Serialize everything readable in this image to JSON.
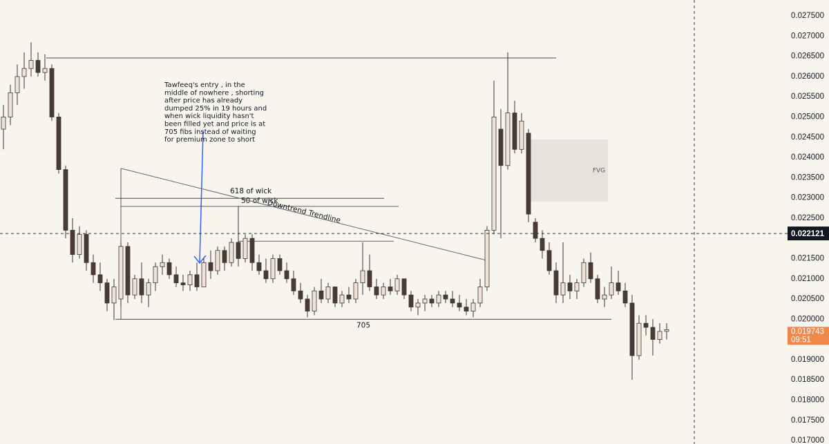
{
  "chart_data": {
    "type": "candlestick",
    "up_color": "#efe3d6",
    "down_color": "#4a3a36",
    "open": [
      0.0247,
      0.025,
      0.0256,
      0.026,
      0.0262,
      0.0264,
      0.0261,
      0.0262,
      0.025,
      0.0237,
      0.0222,
      0.0216,
      0.0221,
      0.0214,
      0.0211,
      0.0209,
      0.0204,
      0.0205,
      0.0218,
      0.0206,
      0.021,
      0.0206,
      0.0209,
      0.0213,
      0.0214,
      0.0211,
      0.0209,
      0.02085,
      0.0211,
      0.0208,
      0.0214,
      0.0212,
      0.0217,
      0.0214,
      0.0219,
      0.0215,
      0.022,
      0.0214,
      0.0212,
      0.021,
      0.0215,
      0.0212,
      0.021,
      0.0207,
      0.0205,
      0.0202,
      0.0207,
      0.0205,
      0.0208,
      0.0204,
      0.0206,
      0.0205,
      0.0209,
      0.0212,
      0.0208,
      0.0206,
      0.0208,
      0.0207,
      0.021,
      0.0206,
      0.0203,
      0.0204,
      0.0205,
      0.0204,
      0.0206,
      0.0205,
      0.0204,
      0.0203,
      0.0202,
      0.0204,
      0.0208,
      0.0222,
      0.0247,
      0.0238,
      0.0251,
      0.0242,
      0.0246,
      0.0224,
      0.022,
      0.0217,
      0.0212,
      0.0206,
      0.0209,
      0.0207,
      0.0209,
      0.0214,
      0.021,
      0.0205,
      0.0206,
      0.0209,
      0.0207,
      0.0204,
      0.0191,
      0.0199,
      0.0198,
      0.0195,
      0.0197
    ],
    "high": [
      0.0253,
      0.0258,
      0.0263,
      0.0266,
      0.02685,
      0.0266,
      0.02655,
      0.0263,
      0.0251,
      0.0238,
      0.0225,
      0.0223,
      0.0222,
      0.0216,
      0.0214,
      0.021,
      0.021,
      0.0219,
      0.0219,
      0.0211,
      0.0214,
      0.021,
      0.0214,
      0.0216,
      0.0215,
      0.0213,
      0.0211,
      0.0212,
      0.0214,
      0.0215,
      0.0217,
      0.0218,
      0.0218,
      0.022,
      0.0228,
      0.0221,
      0.0221,
      0.0216,
      0.0215,
      0.0216,
      0.0216,
      0.0214,
      0.0212,
      0.0209,
      0.0206,
      0.0208,
      0.021,
      0.0209,
      0.0208,
      0.0207,
      0.0208,
      0.021,
      0.0219,
      0.0216,
      0.021,
      0.0209,
      0.021,
      0.0211,
      0.021,
      0.0207,
      0.0205,
      0.0206,
      0.0206,
      0.0207,
      0.0207,
      0.0207,
      0.0206,
      0.0205,
      0.0205,
      0.021,
      0.0223,
      0.0259,
      0.0252,
      0.0266,
      0.0254,
      0.0251,
      0.0247,
      0.0225,
      0.0222,
      0.0219,
      0.0214,
      0.0219,
      0.0211,
      0.021,
      0.0215,
      0.02165,
      0.0211,
      0.0208,
      0.0213,
      0.0212,
      0.0209,
      0.0206,
      0.0201,
      0.0201,
      0.02,
      0.0199,
      0.0199
    ],
    "low": [
      0.0242,
      0.0248,
      0.0253,
      0.0257,
      0.026,
      0.026,
      0.0259,
      0.0249,
      0.0236,
      0.022,
      0.0214,
      0.0215,
      0.0212,
      0.0209,
      0.0207,
      0.0202,
      0.01998,
      0.0203,
      0.0204,
      0.0205,
      0.0204,
      0.0203,
      0.0207,
      0.0211,
      0.021,
      0.0208,
      0.0207,
      0.0207,
      0.0207,
      0.0208,
      0.021,
      0.0211,
      0.0212,
      0.0213,
      0.0213,
      0.0214,
      0.0212,
      0.0211,
      0.0209,
      0.0209,
      0.0211,
      0.0209,
      0.0206,
      0.0204,
      0.02005,
      0.0201,
      0.0204,
      0.0204,
      0.0203,
      0.0203,
      0.0204,
      0.0204,
      0.0206,
      0.0207,
      0.0205,
      0.0205,
      0.0206,
      0.0206,
      0.0205,
      0.0202,
      0.0201,
      0.0202,
      0.0203,
      0.0203,
      0.0204,
      0.0203,
      0.0202,
      0.0201,
      0.02005,
      0.0203,
      0.0207,
      0.0221,
      0.022,
      0.0237,
      0.0241,
      0.0241,
      0.0224,
      0.0219,
      0.0215,
      0.0211,
      0.0204,
      0.0204,
      0.0205,
      0.0205,
      0.0208,
      0.0209,
      0.0204,
      0.0203,
      0.0205,
      0.0206,
      0.0203,
      0.0185,
      0.019,
      0.0196,
      0.0191,
      0.0194,
      0.0195
    ],
    "close": [
      0.025,
      0.0256,
      0.026,
      0.0262,
      0.0264,
      0.0261,
      0.0262,
      0.025,
      0.0237,
      0.0222,
      0.0216,
      0.0221,
      0.0214,
      0.0211,
      0.0209,
      0.0204,
      0.0208,
      0.0218,
      0.0206,
      0.021,
      0.0206,
      0.0209,
      0.0213,
      0.0214,
      0.0211,
      0.0209,
      0.02085,
      0.0211,
      0.0208,
      0.0214,
      0.0212,
      0.0217,
      0.0214,
      0.0219,
      0.0215,
      0.022,
      0.0214,
      0.0212,
      0.021,
      0.0215,
      0.0212,
      0.021,
      0.0207,
      0.0205,
      0.0202,
      0.0207,
      0.0205,
      0.0208,
      0.0204,
      0.0206,
      0.0205,
      0.0209,
      0.0212,
      0.0208,
      0.0206,
      0.0208,
      0.0207,
      0.021,
      0.0206,
      0.0203,
      0.0204,
      0.0205,
      0.0204,
      0.0206,
      0.0205,
      0.0204,
      0.0203,
      0.0202,
      0.0204,
      0.0208,
      0.0222,
      0.025,
      0.0238,
      0.0251,
      0.0242,
      0.0249,
      0.0226,
      0.022,
      0.0217,
      0.0212,
      0.0206,
      0.0209,
      0.0207,
      0.0209,
      0.0214,
      0.021,
      0.0205,
      0.0206,
      0.0209,
      0.0207,
      0.0204,
      0.0191,
      0.0199,
      0.0198,
      0.0195,
      0.0197,
      0.019743
    ],
    "ylim": [
      0.016915,
      0.027893
    ],
    "yticks": [
      {
        "value": 0.0275,
        "label": "0.027500"
      },
      {
        "value": 0.027,
        "label": "0.027000"
      },
      {
        "value": 0.0265,
        "label": "0.026500"
      },
      {
        "value": 0.026,
        "label": "0.026000"
      },
      {
        "value": 0.0255,
        "label": "0.025500"
      },
      {
        "value": 0.025,
        "label": "0.025000"
      },
      {
        "value": 0.0245,
        "label": "0.024500"
      },
      {
        "value": 0.024,
        "label": "0.024000"
      },
      {
        "value": 0.0235,
        "label": "0.023500"
      },
      {
        "value": 0.023,
        "label": "0.023000"
      },
      {
        "value": 0.0225,
        "label": "0.022500"
      },
      {
        "value": 0.022,
        "label": "0.022000"
      },
      {
        "value": 0.0215,
        "label": "0.021500"
      },
      {
        "value": 0.021,
        "label": "0.021000"
      },
      {
        "value": 0.0205,
        "label": "0.020500"
      },
      {
        "value": 0.02,
        "label": "0.020000"
      },
      {
        "value": 0.0195,
        "label": "0.019500"
      },
      {
        "value": 0.019,
        "label": "0.019000"
      },
      {
        "value": 0.0185,
        "label": "0.018500"
      },
      {
        "value": 0.018,
        "label": "0.018000"
      },
      {
        "value": 0.0175,
        "label": "0.017500"
      },
      {
        "value": 0.017,
        "label": "0.017000"
      }
    ],
    "crosshair_price": 0.022121,
    "last_price": 0.019743,
    "countdown": "09:51",
    "lines": [
      {
        "value": 0.02646
      },
      {
        "value": 0.02299,
        "label": "618 of wick"
      },
      {
        "value": 0.02279,
        "label": "50 of wick"
      },
      {
        "value": 0.02193
      },
      {
        "value": 0.02,
        "label": "705"
      }
    ],
    "trendline": {
      "label": "Downtrend Trendline",
      "values": [
        0.02373,
        0.02144
      ]
    },
    "zone": {
      "label": "FVG",
      "values": [
        0.02444,
        0.02291
      ]
    },
    "note": [
      "Tawfeeq's entry , in the",
      "middle of nowhere , shorting",
      "after price has already",
      "dumped 25% in 19  hours and",
      "when wick liquidity hasn't",
      "been filled yet and price is at",
      "705 fibs instead of waiting",
      "for premium zone to short"
    ]
  }
}
